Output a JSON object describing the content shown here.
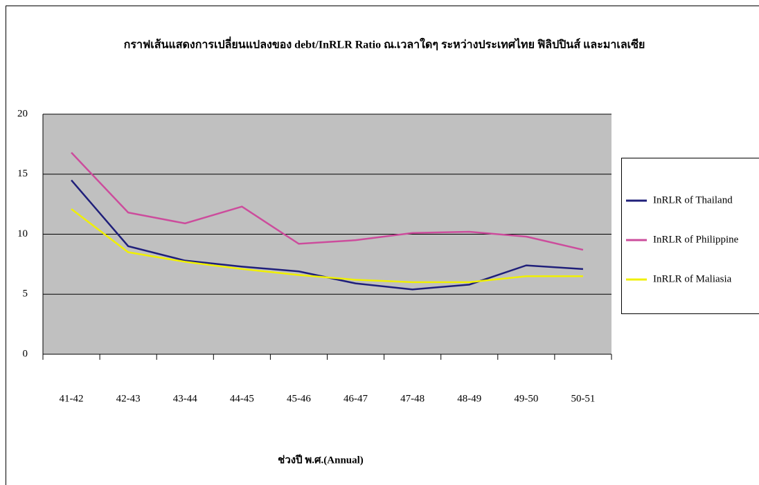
{
  "chart_data": {
    "type": "line",
    "title": "กราฟเส้นแสดงการเปลี่ยนแปลงของ debt/InRLR Ratio ณ.เวลาใดๆ ระหว่างประเทศไทย ฟิลิปปินส์ และมาเลเซีย",
    "x_label": "ช่วงปี พ.ศ.(Annual)",
    "categories": [
      "41-42",
      "42-43",
      "43-44",
      "44-45",
      "45-46",
      "46-47",
      "47-48",
      "48-49",
      "49-50",
      "50-51"
    ],
    "series": [
      {
        "name": "InRLR of Thailand",
        "color": "#1f1f7a",
        "values": [
          14.5,
          9.0,
          7.8,
          7.3,
          6.9,
          5.9,
          5.4,
          5.8,
          7.4,
          7.1
        ]
      },
      {
        "name": "InRLR  of Philippine",
        "color": "#cc4c9c",
        "values": [
          16.8,
          11.8,
          10.9,
          12.3,
          9.2,
          9.5,
          10.1,
          10.2,
          9.8,
          8.7
        ]
      },
      {
        "name": "InRLR of Maliasia",
        "color": "#f0f000",
        "values": [
          12.1,
          8.5,
          7.7,
          7.1,
          6.6,
          6.2,
          6.0,
          6.0,
          6.5,
          6.5
        ]
      }
    ],
    "ylim": [
      0,
      20
    ],
    "yticks": [
      0,
      5,
      10,
      15,
      20
    ],
    "grid": true,
    "legend": "right"
  }
}
